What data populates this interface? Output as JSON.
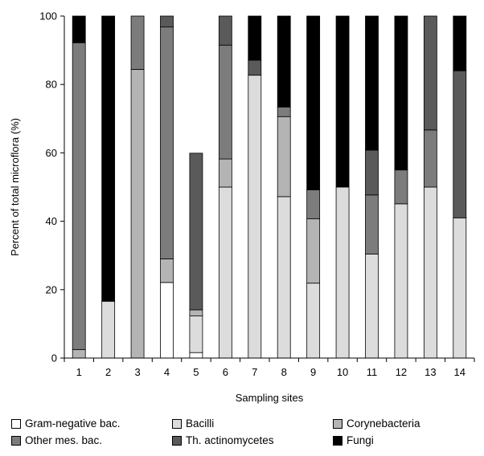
{
  "chart_data": {
    "type": "bar",
    "stacked": true,
    "xlabel": "Sampling sites",
    "ylabel": "Percent of total microflora (%)",
    "ylim": [
      0,
      100
    ],
    "yticks": [
      "0",
      "20",
      "40",
      "60",
      "80",
      "100"
    ],
    "categories": [
      "1",
      "2",
      "3",
      "4",
      "5",
      "6",
      "7",
      "8",
      "9",
      "10",
      "11",
      "12",
      "13",
      "14"
    ],
    "legend_position": "bottom",
    "series": [
      {
        "name": "Gram-negative bac.",
        "color": "#ffffff",
        "values": [
          0,
          0,
          0,
          22.1,
          1.6,
          0,
          0,
          0,
          0,
          0,
          0,
          0,
          0,
          0
        ]
      },
      {
        "name": "Bacilli",
        "color": "#dcdcdc",
        "values": [
          0,
          16.6,
          0,
          0,
          10.7,
          50,
          82.7,
          47.2,
          21.9,
          50,
          30.4,
          45.1,
          50,
          41
        ]
      },
      {
        "name": "Corynebacteria",
        "color": "#b4b4b4",
        "values": [
          2.5,
          0,
          84.4,
          6.9,
          1.8,
          8.2,
          0,
          23.4,
          18.8,
          0,
          0,
          0,
          0,
          0
        ]
      },
      {
        "name": "Other mes. bac.",
        "color": "#7c7c7c",
        "values": [
          89.7,
          0,
          15.6,
          67.8,
          0,
          33.3,
          0,
          2.8,
          8.5,
          0,
          17.3,
          9.9,
          16.7,
          0
        ]
      },
      {
        "name": "Th. actinomycetes",
        "color": "#5a5a5a",
        "values": [
          0,
          0,
          0,
          3.2,
          45.8,
          8.5,
          4.4,
          0,
          0,
          0,
          13.1,
          0,
          33.3,
          43
        ]
      },
      {
        "name": "Fungi",
        "color": "#000000",
        "values": [
          7.8,
          83.4,
          0,
          0,
          0,
          0,
          12.9,
          26.6,
          50.8,
          50,
          39.2,
          45,
          0,
          16
        ]
      }
    ]
  }
}
